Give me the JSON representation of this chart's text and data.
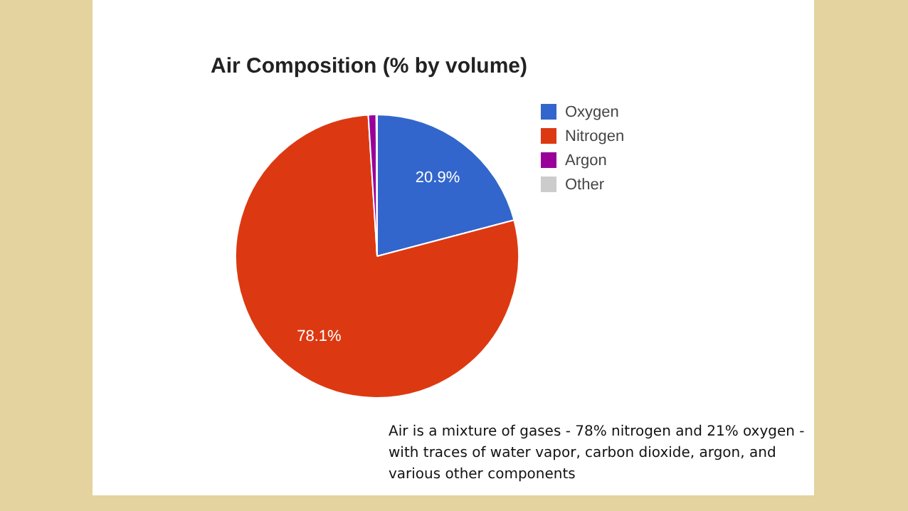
{
  "chart_data": {
    "type": "pie",
    "title": "Air Composition (% by volume)",
    "categories": [
      "Oxygen",
      "Nitrogen",
      "Argon",
      "Other"
    ],
    "values": [
      20.9,
      78.1,
      0.9,
      0.1
    ],
    "colors": [
      "#3366cc",
      "#dc3912",
      "#990099",
      "#cccccc"
    ],
    "value_labels": [
      "20.9%",
      "78.1%",
      null,
      null
    ],
    "legend": "right",
    "annotations": [
      "Air is a mixture of gases - 78% nitrogen and 21% oxygen - with traces of water vapor, carbon dioxide, argon, and various other components"
    ]
  }
}
